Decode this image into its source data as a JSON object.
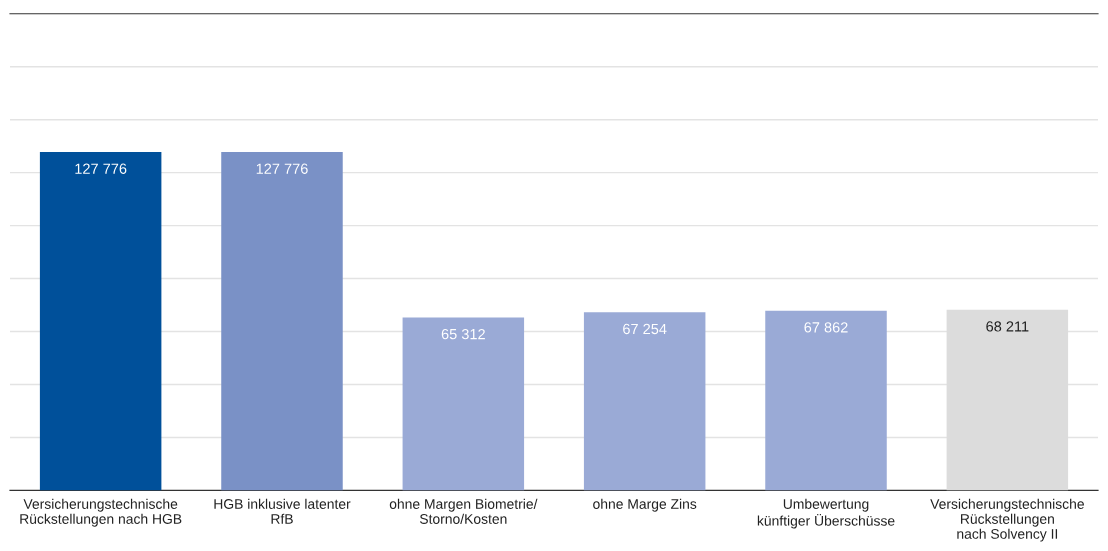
{
  "chart_data": {
    "type": "bar",
    "categories": [
      "Versicherungstechnische\nRückstellungen nach HGB",
      "HGB inklusive latenter\nRfB",
      "ohne Margen Biometrie/\nStorno/Kosten",
      "ohne Marge Zins",
      "Umbewertung\nkünftiger Überschüsse",
      "Versicherungstechnische\nRückstellungen\nnach Solvency II"
    ],
    "values": [
      127776,
      127776,
      65312,
      67254,
      67862,
      68211
    ],
    "colors": [
      "#00509a",
      "#7a91c6",
      "#9aaad6",
      "#9aaad6",
      "#9aaad6",
      "#dcdcdc"
    ],
    "value_labels": [
      "127 776",
      "127 776",
      "65 312",
      "67 254",
      "67 862",
      "68 211"
    ],
    "ylim": [
      0,
      180000
    ],
    "yticks": [
      {
        "value": 20000,
        "label": null
      },
      {
        "value": 40000,
        "label": null
      },
      {
        "value": 60000,
        "label": null
      },
      {
        "value": 80000,
        "label": null
      },
      {
        "value": 100000,
        "label": null
      },
      {
        "value": 120000,
        "label": null
      },
      {
        "value": 140000,
        "label": null
      },
      {
        "value": 160000,
        "label": null
      }
    ],
    "grid": "y",
    "tick_labels": "x"
  }
}
